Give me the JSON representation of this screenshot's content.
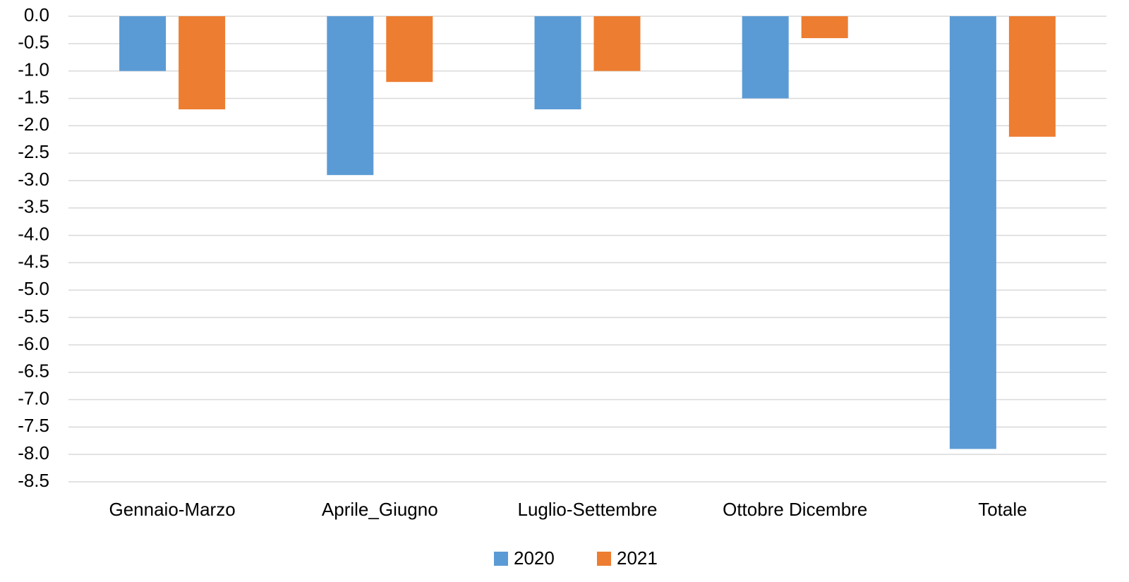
{
  "chart_data": {
    "type": "bar",
    "categories": [
      "Gennaio-Marzo",
      "Aprile_Giugno",
      "Luglio-Settembre",
      "Ottobre Dicembre",
      "Totale"
    ],
    "series": [
      {
        "name": "2020",
        "color": "#5b9bd5",
        "values": [
          -1.0,
          -2.9,
          -1.7,
          -1.5,
          -7.9
        ]
      },
      {
        "name": "2021",
        "color": "#ed7d31",
        "values": [
          -1.7,
          -1.2,
          -1.0,
          -0.4,
          -2.2
        ]
      }
    ],
    "ylim": [
      -8.5,
      0
    ],
    "yticks": [
      {
        "value": 0,
        "label": "0.0"
      },
      -0.5,
      {
        "value": -1,
        "label": "-1.0"
      },
      -1.5,
      {
        "value": -2,
        "label": "-2.0"
      },
      -2.5,
      {
        "value": -3,
        "label": "-3.0"
      },
      -3.5,
      {
        "value": -4,
        "label": "-4.0"
      },
      -4.5,
      {
        "value": -5,
        "label": "-5.0"
      },
      -5.5,
      {
        "value": -6,
        "label": "-6.0"
      },
      -6.5,
      {
        "value": -7,
        "label": "-7.0"
      },
      -7.5,
      {
        "value": -8,
        "label": "-8.0"
      },
      -8.5
    ],
    "grid": true,
    "legend": "bottom"
  }
}
